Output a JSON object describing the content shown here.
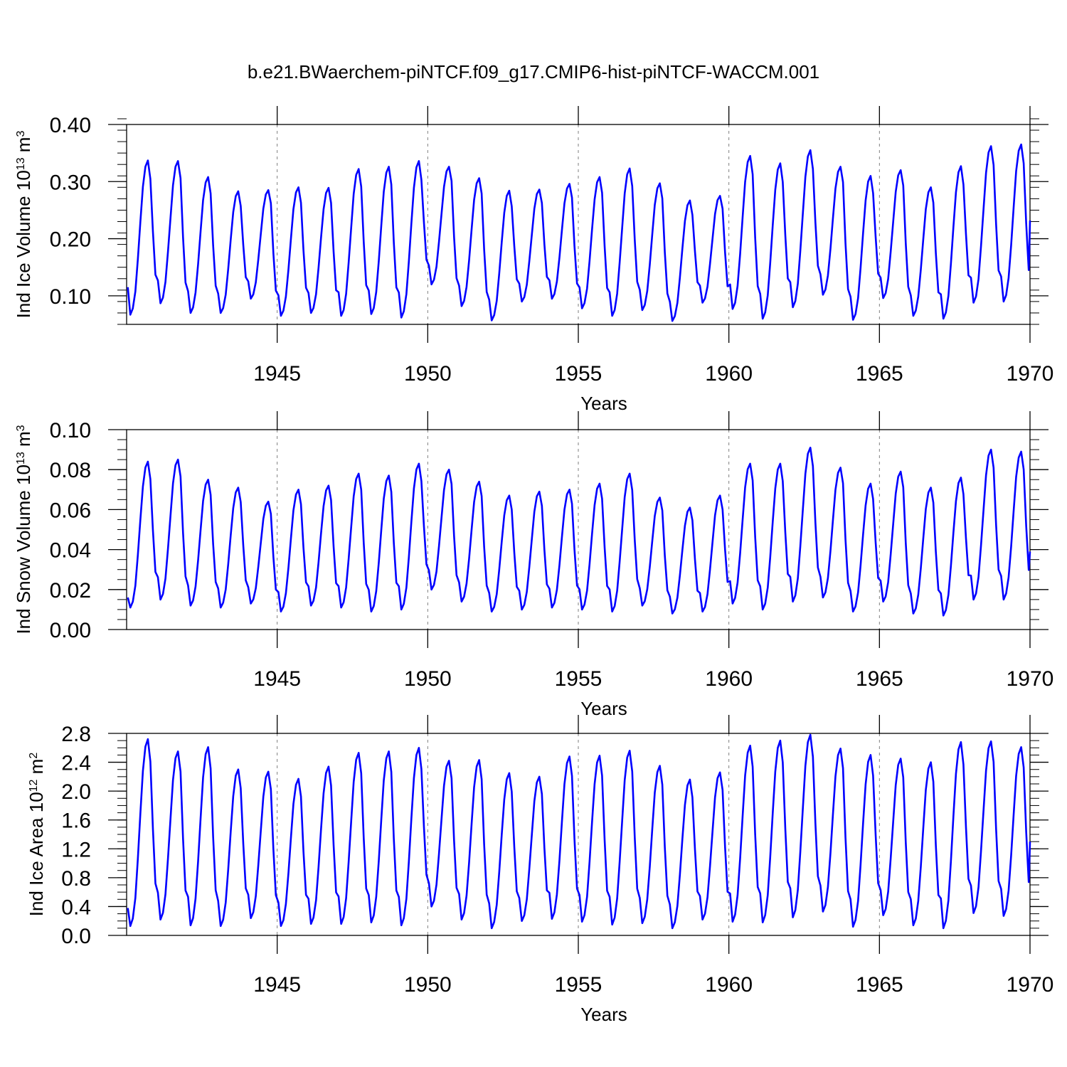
{
  "title": "b.e21.BWaerchem-piNTCF.f09_g17.CMIP6-hist-piNTCF-WACCM.001",
  "colors": {
    "line": "#0000ff",
    "axes": "#000000",
    "grid": "#7f7f7f"
  },
  "chart_data": [
    {
      "type": "line",
      "id": "ice-volume",
      "ylabel": {
        "main": "Ind Ice Volume 10",
        "exp": "13",
        "unit": " m",
        "unit_exp": "3"
      },
      "xlabel": "Years",
      "xlim": [
        1940,
        1970
      ],
      "ylim": [
        0.05,
        0.4
      ],
      "yticks": [
        0.1,
        0.2,
        0.3,
        0.4
      ],
      "ytick_labels": [
        "0.10",
        "0.20",
        "0.30",
        "0.40"
      ],
      "yminor_step": 0.02,
      "xticks": [
        1945,
        1950,
        1955,
        1960,
        1965,
        1970
      ],
      "xtick_labels": [
        "1945",
        "1950",
        "1955",
        "1960",
        "1965",
        "1970"
      ],
      "grid_x": [
        1945,
        1950,
        1955,
        1960,
        1965
      ],
      "start": 1940.04,
      "step": 0.0833333,
      "series_name": "Ind Ice Volume",
      "yearly": [
        [
          0.067,
          0.337,
          0.115
        ],
        [
          0.087,
          0.336
        ],
        [
          0.07,
          0.308
        ],
        [
          0.07,
          0.283
        ],
        [
          0.095,
          0.285
        ],
        [
          0.065,
          0.29
        ],
        [
          0.07,
          0.289
        ],
        [
          0.065,
          0.322
        ],
        [
          0.068,
          0.326
        ],
        [
          0.062,
          0.336
        ],
        [
          0.12,
          0.326
        ],
        [
          0.082,
          0.306
        ],
        [
          0.057,
          0.284
        ],
        [
          0.09,
          0.286
        ],
        [
          0.095,
          0.296
        ],
        [
          0.078,
          0.308
        ],
        [
          0.065,
          0.323
        ],
        [
          0.075,
          0.297
        ],
        [
          0.056,
          0.267
        ],
        [
          0.088,
          0.275
        ],
        [
          0.077,
          0.345
        ],
        [
          0.06,
          0.332
        ],
        [
          0.08,
          0.355
        ],
        [
          0.102,
          0.326
        ],
        [
          0.058,
          0.31
        ],
        [
          0.096,
          0.32
        ],
        [
          0.065,
          0.29
        ],
        [
          0.06,
          0.327
        ],
        [
          0.088,
          0.362
        ],
        [
          0.09,
          0.365
        ]
      ],
      "end_value": 0.232
    },
    {
      "type": "line",
      "id": "snow-volume",
      "ylabel": {
        "main": "Ind Snow Volume 10",
        "exp": "13",
        "unit": " m",
        "unit_exp": "3"
      },
      "xlabel": "Years",
      "xlim": [
        1940,
        1970
      ],
      "ylim": [
        0.0,
        0.1
      ],
      "yticks": [
        0.0,
        0.02,
        0.04,
        0.06,
        0.08,
        0.1
      ],
      "ytick_labels": [
        "0.00",
        "0.02",
        "0.04",
        "0.06",
        "0.08",
        "0.10"
      ],
      "yminor_step": 0.005,
      "xticks": [
        1945,
        1950,
        1955,
        1960,
        1965,
        1970
      ],
      "xtick_labels": [
        "1945",
        "1950",
        "1955",
        "1960",
        "1965",
        "1970"
      ],
      "grid_x": [
        1945,
        1950,
        1955,
        1960,
        1965
      ],
      "start": 1940.04,
      "step": 0.0833333,
      "series_name": "Ind Snow Volume",
      "yearly": [
        [
          0.011,
          0.084,
          0.016
        ],
        [
          0.015,
          0.085
        ],
        [
          0.012,
          0.075
        ],
        [
          0.011,
          0.071
        ],
        [
          0.013,
          0.064
        ],
        [
          0.009,
          0.07
        ],
        [
          0.012,
          0.072
        ],
        [
          0.011,
          0.078
        ],
        [
          0.009,
          0.077
        ],
        [
          0.01,
          0.083
        ],
        [
          0.02,
          0.08
        ],
        [
          0.014,
          0.074
        ],
        [
          0.009,
          0.067
        ],
        [
          0.01,
          0.069
        ],
        [
          0.011,
          0.07
        ],
        [
          0.01,
          0.073
        ],
        [
          0.009,
          0.078
        ],
        [
          0.012,
          0.066
        ],
        [
          0.008,
          0.061
        ],
        [
          0.009,
          0.067
        ],
        [
          0.013,
          0.083
        ],
        [
          0.01,
          0.083
        ],
        [
          0.014,
          0.091
        ],
        [
          0.016,
          0.081
        ],
        [
          0.009,
          0.073
        ],
        [
          0.014,
          0.079
        ],
        [
          0.008,
          0.071
        ],
        [
          0.007,
          0.076
        ],
        [
          0.015,
          0.09
        ],
        [
          0.015,
          0.089
        ]
      ],
      "end_value": 0.039
    },
    {
      "type": "line",
      "id": "ice-area",
      "ylabel": {
        "main": "Ind Ice Area 10",
        "exp": "12",
        "unit": " m",
        "unit_exp": "2"
      },
      "xlabel": "Years",
      "xlim": [
        1940,
        1970
      ],
      "ylim": [
        0.0,
        2.8
      ],
      "yticks": [
        0.0,
        0.4,
        0.8,
        1.2,
        1.6,
        2.0,
        2.4,
        2.8
      ],
      "ytick_labels": [
        "0.0",
        "0.4",
        "0.8",
        "1.2",
        "1.6",
        "2.0",
        "2.4",
        "2.8"
      ],
      "yminor_step": 0.1,
      "xticks": [
        1945,
        1950,
        1955,
        1960,
        1965,
        1970
      ],
      "xtick_labels": [
        "1945",
        "1950",
        "1955",
        "1960",
        "1965",
        "1970"
      ],
      "grid_x": [
        1945,
        1950,
        1955,
        1960,
        1965
      ],
      "start": 1940.04,
      "step": 0.0833333,
      "series_name": "Ind Ice Area",
      "yearly": [
        [
          0.13,
          2.72,
          0.38
        ],
        [
          0.22,
          2.55
        ],
        [
          0.14,
          2.61
        ],
        [
          0.13,
          2.3
        ],
        [
          0.24,
          2.27
        ],
        [
          0.13,
          2.17
        ],
        [
          0.16,
          2.34
        ],
        [
          0.16,
          2.53
        ],
        [
          0.18,
          2.55
        ],
        [
          0.14,
          2.6
        ],
        [
          0.4,
          2.42
        ],
        [
          0.22,
          2.43
        ],
        [
          0.1,
          2.25
        ],
        [
          0.2,
          2.2
        ],
        [
          0.23,
          2.48
        ],
        [
          0.19,
          2.49
        ],
        [
          0.15,
          2.56
        ],
        [
          0.17,
          2.35
        ],
        [
          0.1,
          2.16
        ],
        [
          0.22,
          2.26
        ],
        [
          0.19,
          2.63
        ],
        [
          0.18,
          2.7
        ],
        [
          0.25,
          2.78
        ],
        [
          0.33,
          2.59
        ],
        [
          0.12,
          2.5
        ],
        [
          0.28,
          2.45
        ],
        [
          0.14,
          2.4
        ],
        [
          0.1,
          2.68
        ],
        [
          0.31,
          2.69
        ],
        [
          0.27,
          2.61
        ]
      ],
      "end_value": 1.3
    }
  ]
}
